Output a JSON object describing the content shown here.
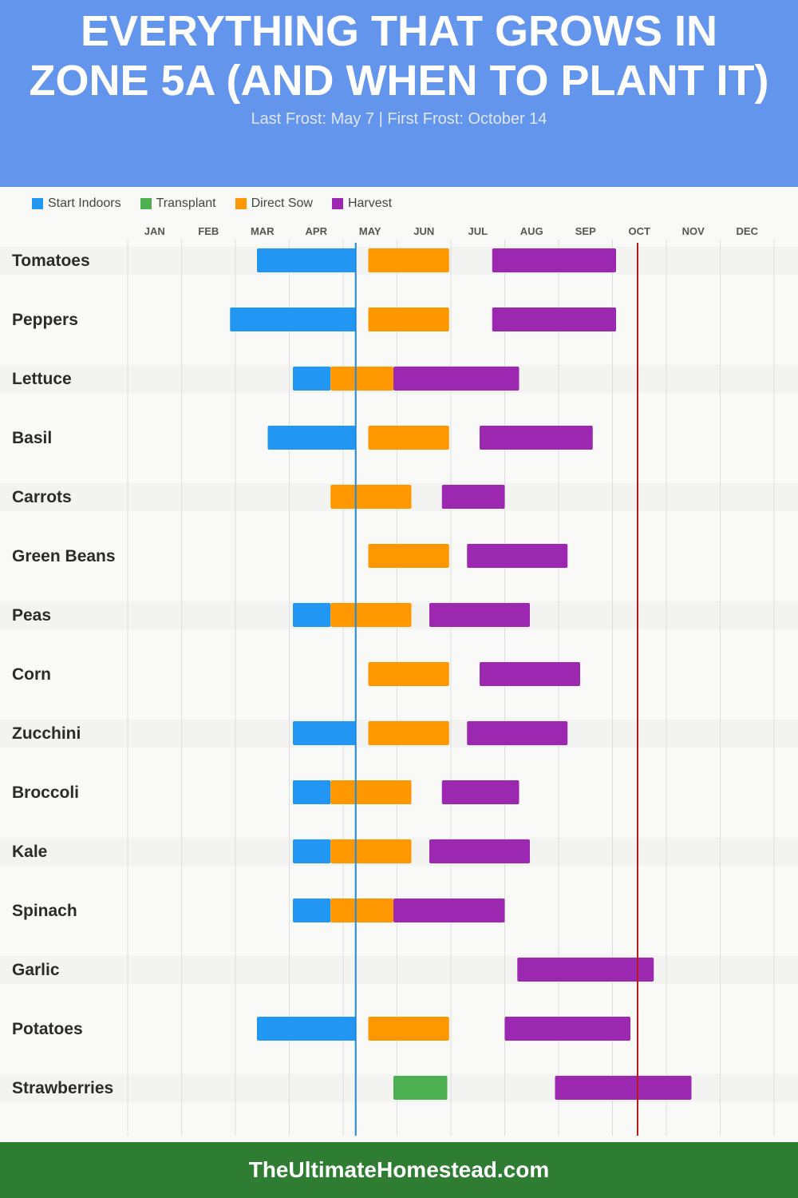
{
  "header": {
    "title": "EVERYTHING THAT GROWS IN ZONE 5A (AND WHEN TO PLANT IT)",
    "subtitle": "Last Frost: May 7 | First Frost: October 14"
  },
  "footer": {
    "text": "TheUltimateHomestead.com"
  },
  "chart_data": {
    "type": "gantt",
    "months": [
      "JAN",
      "FEB",
      "MAR",
      "APR",
      "MAY",
      "JUN",
      "JUL",
      "AUG",
      "SEP",
      "OCT",
      "NOV",
      "DEC"
    ],
    "legend": [
      {
        "key": "indoors",
        "label": "Start Indoors",
        "color": "#2196f3"
      },
      {
        "key": "transplant",
        "label": "Transplant",
        "color": "#4caf50"
      },
      {
        "key": "sow",
        "label": "Direct Sow",
        "color": "#ff9800"
      },
      {
        "key": "harvest",
        "label": "Harvest",
        "color": "#9c27b0"
      }
    ],
    "reference_lines": [
      {
        "label": "Last Frost",
        "date": "05-07",
        "color": "#1e88e5"
      },
      {
        "label": "First Frost",
        "date": "10-14",
        "color": "#b71c1c"
      }
    ],
    "crops": [
      {
        "name": "Tomatoes",
        "tasks": [
          {
            "type": "indoors",
            "start": "03-12",
            "end": "05-07"
          },
          {
            "type": "sow",
            "start": "05-14",
            "end": "06-29"
          },
          {
            "type": "harvest",
            "start": "07-23",
            "end": "10-02"
          }
        ]
      },
      {
        "name": "Peppers",
        "tasks": [
          {
            "type": "indoors",
            "start": "02-27",
            "end": "05-07"
          },
          {
            "type": "sow",
            "start": "05-14",
            "end": "06-29"
          },
          {
            "type": "harvest",
            "start": "07-23",
            "end": "10-02"
          }
        ]
      },
      {
        "name": "Lettuce",
        "tasks": [
          {
            "type": "indoors",
            "start": "04-02",
            "end": "04-23"
          },
          {
            "type": "sow",
            "start": "04-23",
            "end": "05-28"
          },
          {
            "type": "harvest",
            "start": "05-28",
            "end": "08-08"
          }
        ]
      },
      {
        "name": "Basil",
        "tasks": [
          {
            "type": "indoors",
            "start": "03-18",
            "end": "05-07"
          },
          {
            "type": "sow",
            "start": "05-14",
            "end": "06-29"
          },
          {
            "type": "harvest",
            "start": "07-16",
            "end": "09-19"
          }
        ]
      },
      {
        "name": "Carrots",
        "tasks": [
          {
            "type": "sow",
            "start": "04-23",
            "end": "06-08"
          },
          {
            "type": "harvest",
            "start": "06-25",
            "end": "07-30"
          }
        ]
      },
      {
        "name": "Green Beans",
        "tasks": [
          {
            "type": "sow",
            "start": "05-14",
            "end": "06-29"
          },
          {
            "type": "harvest",
            "start": "07-09",
            "end": "09-05"
          }
        ]
      },
      {
        "name": "Peas",
        "tasks": [
          {
            "type": "indoors",
            "start": "04-02",
            "end": "04-23"
          },
          {
            "type": "sow",
            "start": "04-23",
            "end": "06-08"
          },
          {
            "type": "harvest",
            "start": "06-18",
            "end": "08-14"
          }
        ]
      },
      {
        "name": "Corn",
        "tasks": [
          {
            "type": "sow",
            "start": "05-14",
            "end": "06-29"
          },
          {
            "type": "harvest",
            "start": "07-16",
            "end": "09-12"
          }
        ]
      },
      {
        "name": "Zucchini",
        "tasks": [
          {
            "type": "indoors",
            "start": "04-02",
            "end": "05-07"
          },
          {
            "type": "sow",
            "start": "05-14",
            "end": "06-29"
          },
          {
            "type": "harvest",
            "start": "07-09",
            "end": "09-05"
          }
        ]
      },
      {
        "name": "Broccoli",
        "tasks": [
          {
            "type": "indoors",
            "start": "04-02",
            "end": "04-23"
          },
          {
            "type": "sow",
            "start": "04-23",
            "end": "06-08"
          },
          {
            "type": "harvest",
            "start": "06-25",
            "end": "08-08"
          }
        ]
      },
      {
        "name": "Kale",
        "tasks": [
          {
            "type": "indoors",
            "start": "04-02",
            "end": "04-23"
          },
          {
            "type": "sow",
            "start": "04-23",
            "end": "06-08"
          },
          {
            "type": "harvest",
            "start": "06-18",
            "end": "08-14"
          }
        ]
      },
      {
        "name": "Spinach",
        "tasks": [
          {
            "type": "indoors",
            "start": "04-02",
            "end": "04-23"
          },
          {
            "type": "sow",
            "start": "04-23",
            "end": "05-28"
          },
          {
            "type": "harvest",
            "start": "05-28",
            "end": "07-30"
          }
        ]
      },
      {
        "name": "Garlic",
        "tasks": [
          {
            "type": "harvest",
            "start": "08-07",
            "end": "10-23"
          }
        ]
      },
      {
        "name": "Potatoes",
        "tasks": [
          {
            "type": "indoors",
            "start": "03-12",
            "end": "05-07"
          },
          {
            "type": "sow",
            "start": "05-14",
            "end": "06-29"
          },
          {
            "type": "harvest",
            "start": "07-30",
            "end": "10-10"
          }
        ]
      },
      {
        "name": "Strawberries",
        "tasks": [
          {
            "type": "transplant",
            "start": "05-28",
            "end": "06-28"
          },
          {
            "type": "harvest",
            "start": "08-28",
            "end": "11-14"
          }
        ]
      }
    ]
  }
}
